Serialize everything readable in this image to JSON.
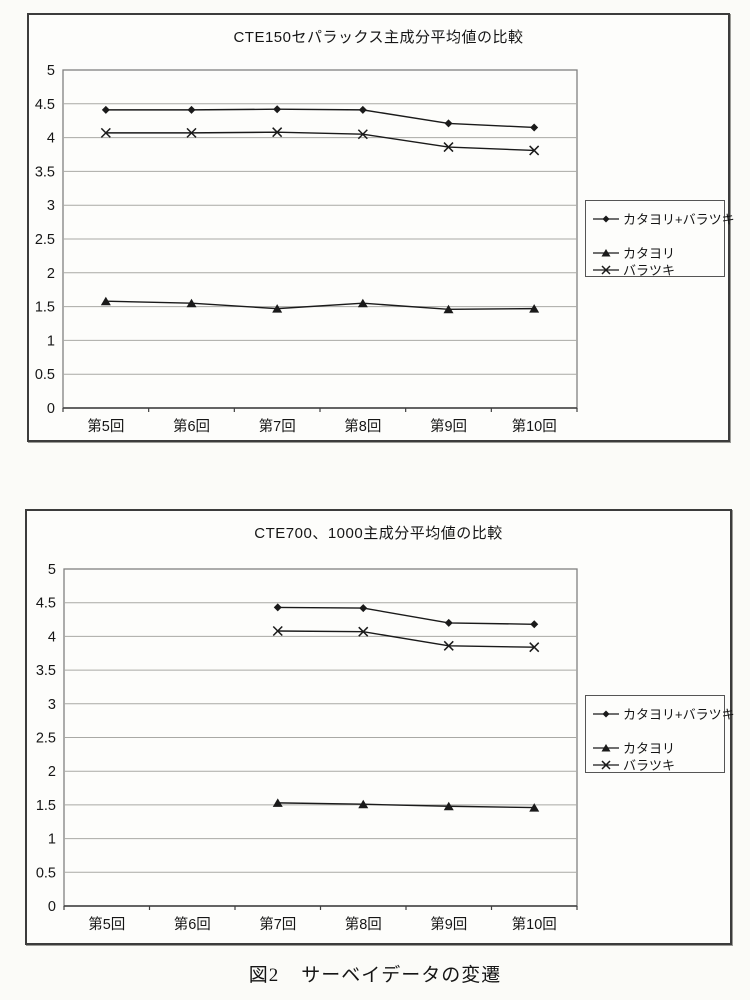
{
  "caption": {
    "figure_label": "図2",
    "text": "サーベイデータの変遷"
  },
  "axis": {
    "ytick_labels": [
      "5",
      "4.5",
      "4",
      "3.5",
      "3",
      "2.5",
      "2",
      "1.5",
      "1",
      "0.5",
      "0"
    ],
    "ytick_values": [
      5,
      4.5,
      4,
      3.5,
      3,
      2.5,
      2,
      1.5,
      1,
      0.5,
      0
    ]
  },
  "colors": {
    "line": "#1a1a1a",
    "gridline": "#a9a9a5",
    "plot_border": "#808080",
    "axis_line": "#3f3f3f",
    "frame_border": "#3c3c3c",
    "text": "#161616",
    "background": "#fbfbf8"
  },
  "chart_data": [
    {
      "type": "line",
      "title": "CTE150セパラックス主成分平均値の比較",
      "categories": [
        "第5回",
        "第6回",
        "第7回",
        "第8回",
        "第9回",
        "第10回"
      ],
      "series": [
        {
          "name": "カタヨリ+バラツキ",
          "marker": "diamond",
          "values": [
            4.41,
            4.41,
            4.42,
            4.41,
            4.21,
            4.15
          ]
        },
        {
          "name": "カタヨリ",
          "marker": "triangle",
          "values": [
            1.58,
            1.55,
            1.47,
            1.55,
            1.46,
            1.47
          ]
        },
        {
          "name": "バラツキ",
          "marker": "x",
          "values": [
            4.07,
            4.07,
            4.08,
            4.05,
            3.86,
            3.81
          ]
        }
      ],
      "xlabel": "",
      "ylabel": "",
      "ylim": [
        0,
        5
      ],
      "ytick_step": 0.5,
      "grid": true,
      "legend_position": "right"
    },
    {
      "type": "line",
      "title": "CTE700、1000主成分平均値の比較",
      "categories": [
        "第5回",
        "第6回",
        "第7回",
        "第8回",
        "第9回",
        "第10回"
      ],
      "series": [
        {
          "name": "カタヨリ+バラツキ",
          "marker": "diamond",
          "values": [
            null,
            null,
            4.43,
            4.42,
            4.2,
            4.18
          ]
        },
        {
          "name": "カタヨリ",
          "marker": "triangle",
          "values": [
            null,
            null,
            1.53,
            1.51,
            1.48,
            1.46
          ]
        },
        {
          "name": "バラツキ",
          "marker": "x",
          "values": [
            null,
            null,
            4.08,
            4.07,
            3.86,
            3.84
          ]
        }
      ],
      "xlabel": "",
      "ylabel": "",
      "ylim": [
        0,
        5
      ],
      "ytick_step": 0.5,
      "grid": true,
      "legend_position": "right"
    }
  ]
}
